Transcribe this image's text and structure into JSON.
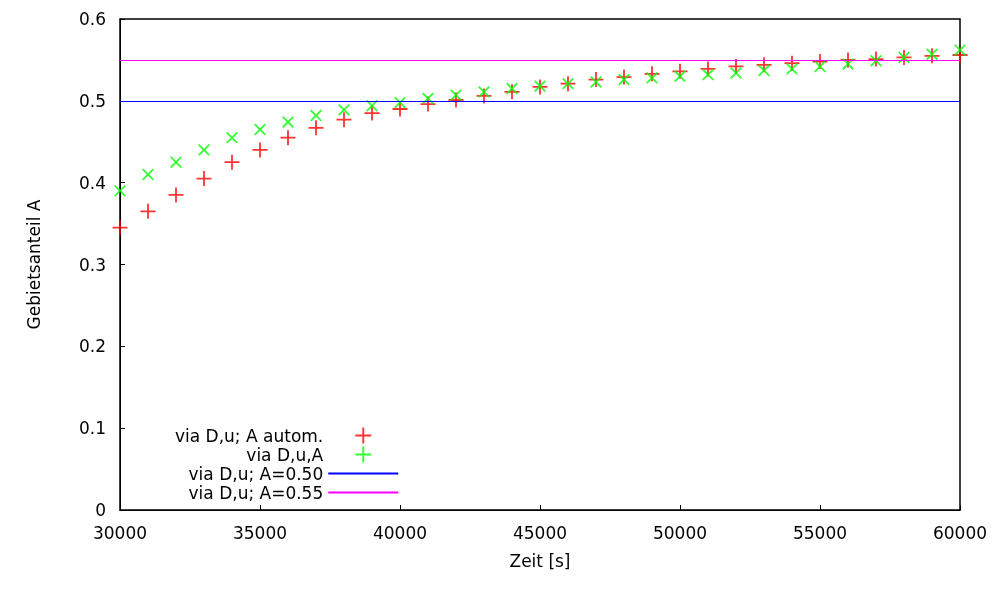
{
  "chart_data": {
    "type": "scatter",
    "xlabel": "Zeit [s]",
    "ylabel": "Gebietsanteil A",
    "xlim": [
      30000,
      60000
    ],
    "xticks": [
      30000,
      35000,
      40000,
      45000,
      50000,
      55000,
      60000
    ],
    "ylim": [
      0,
      0.6
    ],
    "yticks": [
      0,
      0.1,
      0.2,
      0.3,
      0.4,
      0.5,
      0.6
    ],
    "grid": false,
    "legend": "bottom left",
    "x": [
      30000,
      31000,
      32000,
      33000,
      34000,
      35000,
      36000,
      37000,
      38000,
      39000,
      40000,
      41000,
      42000,
      43000,
      44000,
      45000,
      46000,
      47000,
      48000,
      49000,
      50000,
      51000,
      52000,
      53000,
      54000,
      55000,
      56000,
      57000,
      58000,
      59000,
      60000
    ],
    "series": [
      {
        "name": "via D,u; A autom.",
        "color": "#ff0000",
        "marker": "cross",
        "values": [
          0.345,
          0.365,
          0.385,
          0.405,
          0.425,
          0.44,
          0.455,
          0.467,
          0.477,
          0.485,
          0.49,
          0.496,
          0.501,
          0.506,
          0.511,
          0.517,
          0.521,
          0.526,
          0.529,
          0.533,
          0.536,
          0.539,
          0.542,
          0.544,
          0.546,
          0.548,
          0.55,
          0.551,
          0.553,
          0.555,
          0.556
        ]
      },
      {
        "name": "via D,u,A",
        "color": "#00ff00",
        "marker": "x",
        "values": [
          0.39,
          0.41,
          0.425,
          0.44,
          0.455,
          0.465,
          0.474,
          0.482,
          0.489,
          0.494,
          0.498,
          0.503,
          0.507,
          0.511,
          0.515,
          0.518,
          0.521,
          0.523,
          0.526,
          0.528,
          0.53,
          0.532,
          0.534,
          0.537,
          0.539,
          0.542,
          0.545,
          0.549,
          0.553,
          0.557,
          0.562
        ]
      }
    ],
    "ref_lines": [
      {
        "axis": "y",
        "value": 0.5,
        "label": "via D,u; A=0.50",
        "color": "#0000ff",
        "line_style": "solid"
      },
      {
        "axis": "y",
        "value": 0.55,
        "label": "via D,u; A=0.55",
        "color": "#ff00ff",
        "line_style": "solid"
      }
    ]
  }
}
